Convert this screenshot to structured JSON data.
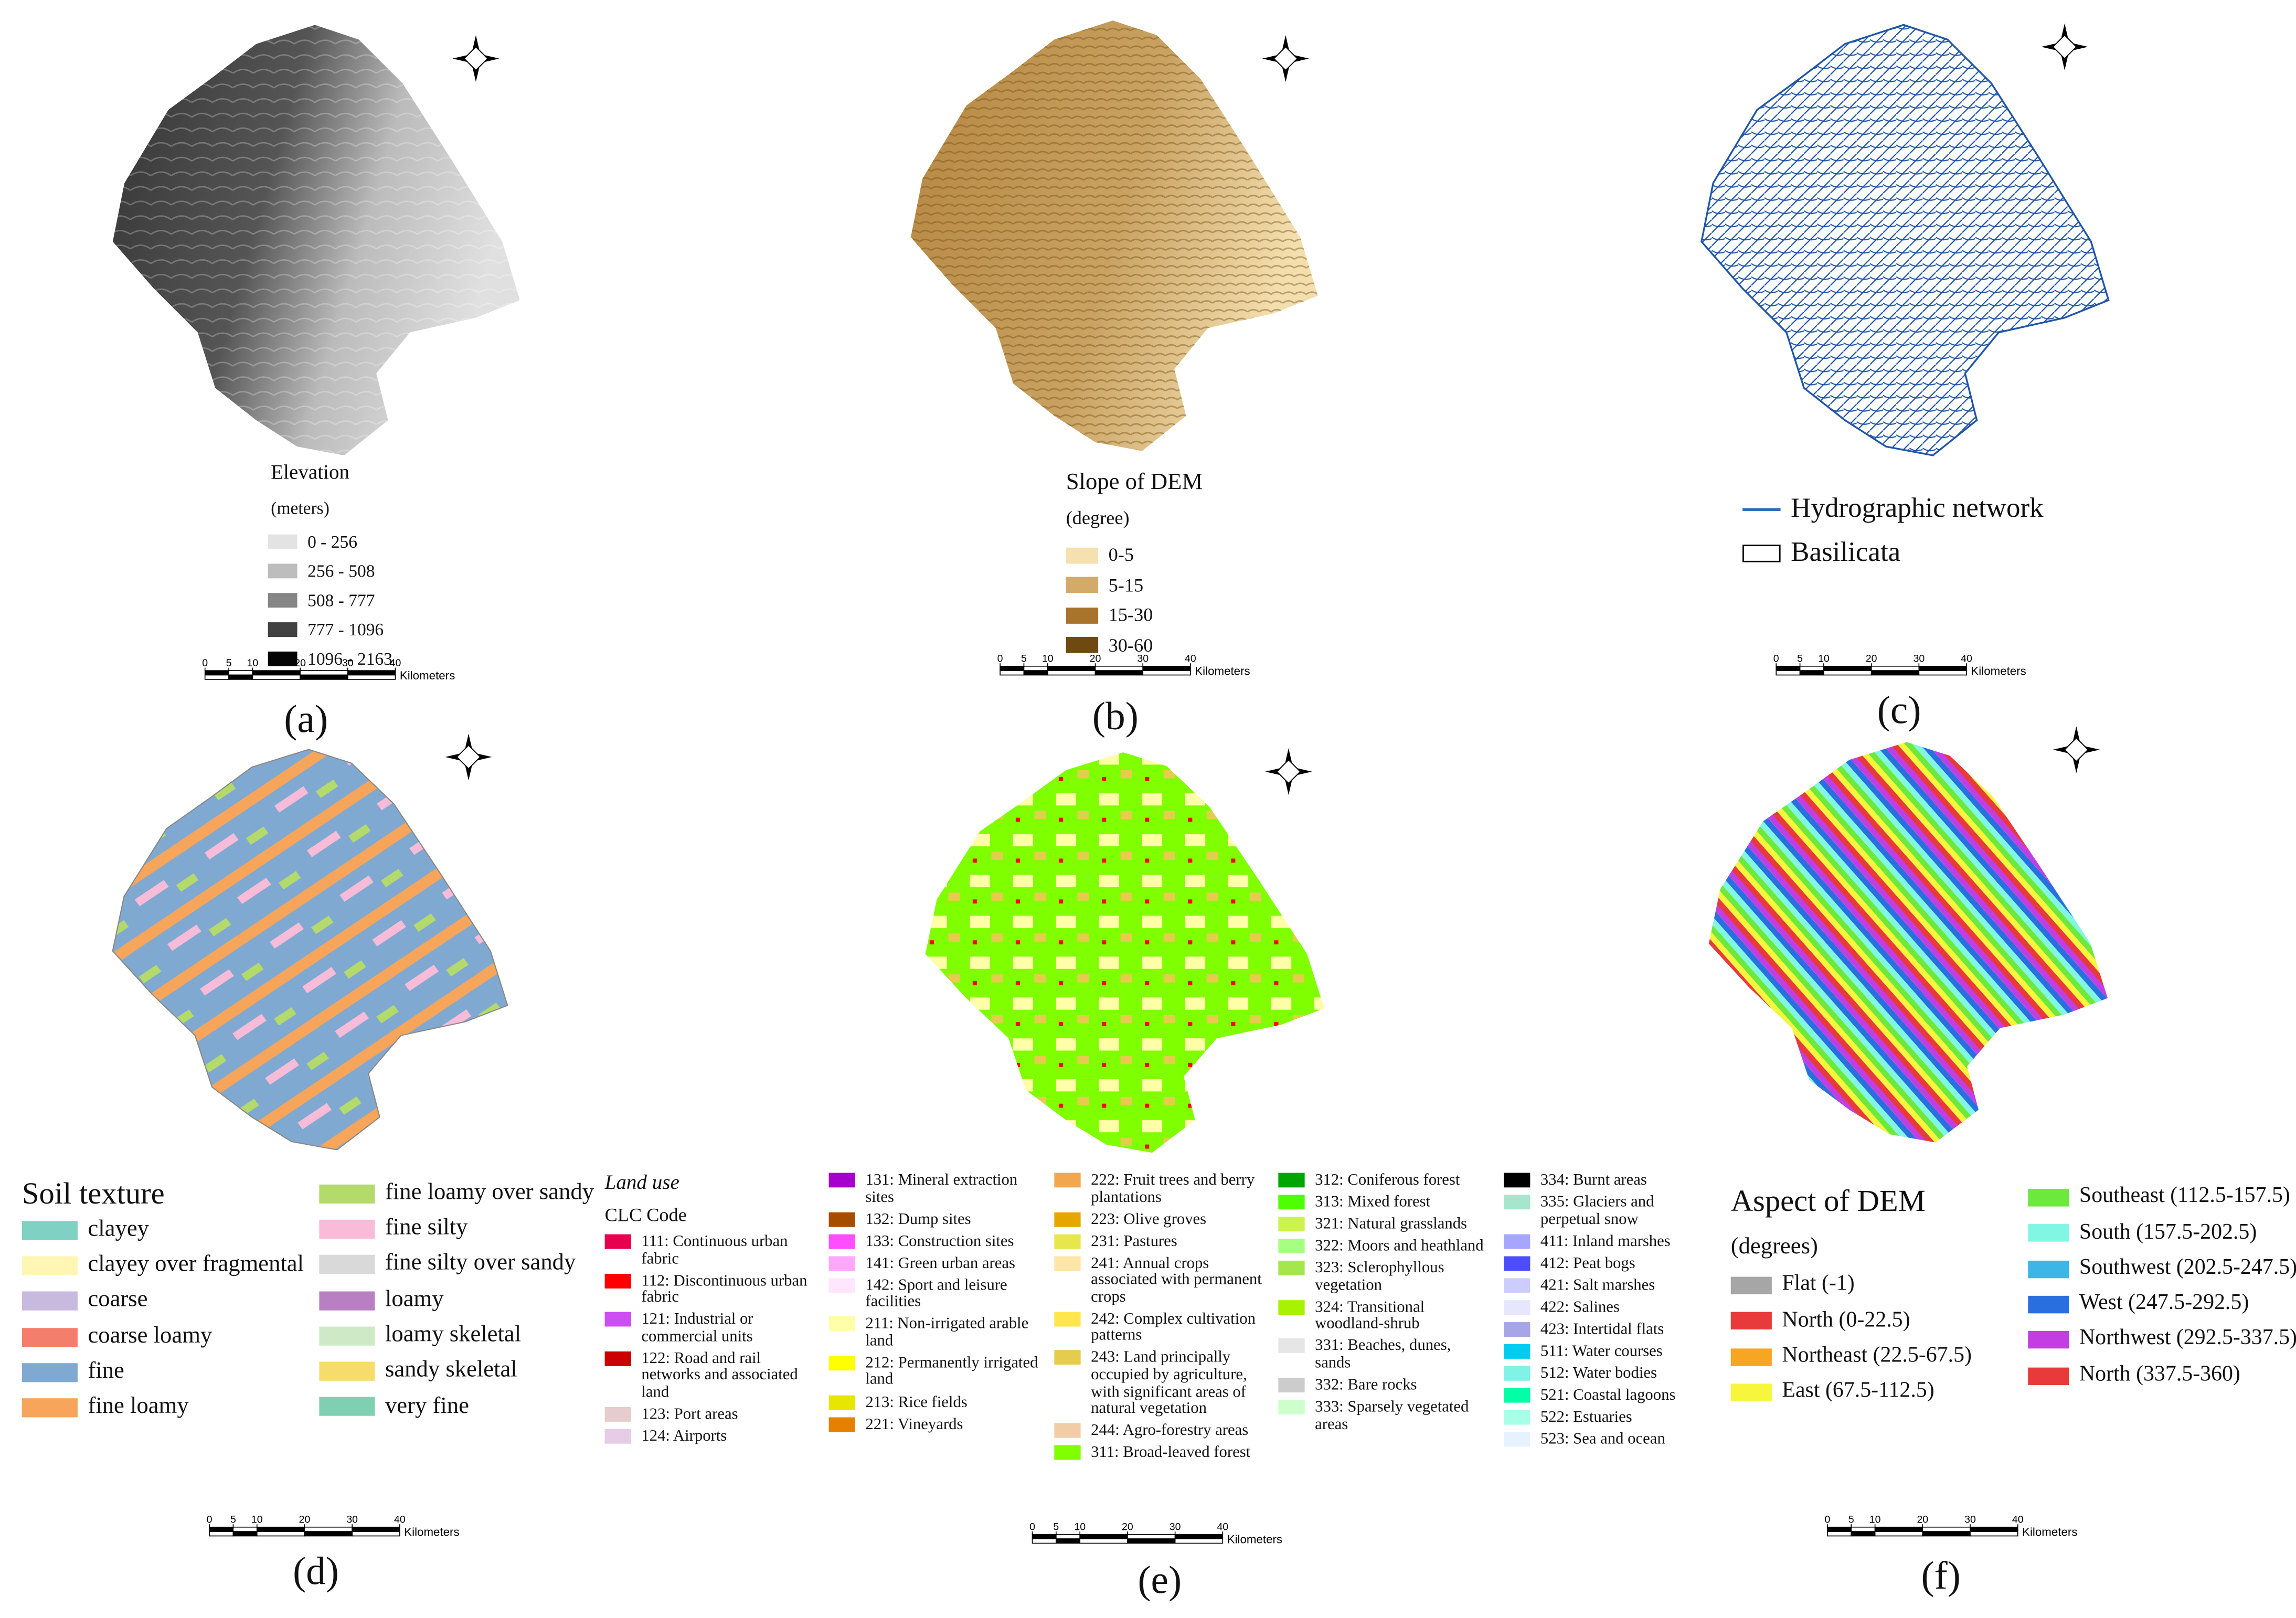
{
  "panels": [
    {
      "label": "(a)",
      "legend": {
        "title": "Elevation",
        "subtitle": "(meters)",
        "columns": [
          [
            {
              "label": "0 - 256",
              "color": "#e3e3e3"
            },
            {
              "label": "256 - 508",
              "color": "#bdbdbd"
            },
            {
              "label": "508 - 777",
              "color": "#858585"
            },
            {
              "label": "777 - 1096",
              "color": "#424242"
            },
            {
              "label": "1096 - 2163",
              "color": "#050505"
            }
          ]
        ]
      }
    },
    {
      "label": "(b)",
      "legend": {
        "title": "Slope of DEM",
        "subtitle": "(degree)",
        "columns": [
          [
            {
              "label": "0-5",
              "color": "#f5e0b0"
            },
            {
              "label": "5-15",
              "color": "#d4aa6a"
            },
            {
              "label": "15-30",
              "color": "#a8732a"
            },
            {
              "label": "30-60",
              "color": "#6e4a10"
            }
          ]
        ]
      }
    },
    {
      "label": "(c)",
      "legend": {
        "columns": [
          [
            {
              "label": "Hydrographic network",
              "color": "#2e6fb8",
              "symbol": "line"
            },
            {
              "label": "Basilicata",
              "color": "#000000",
              "symbol": "outline"
            }
          ]
        ]
      }
    },
    {
      "label": "(d)",
      "legend": {
        "title": "Soil texture",
        "columns": [
          [
            {
              "label": "clayey",
              "color": "#7fd1c3"
            },
            {
              "label": "clayey over fragmental",
              "color": "#fff6b3"
            },
            {
              "label": "coarse",
              "color": "#c8badf"
            },
            {
              "label": "coarse loamy",
              "color": "#f47d6c"
            },
            {
              "label": "fine",
              "color": "#80a9d2"
            },
            {
              "label": "fine loamy",
              "color": "#f6a55a"
            }
          ],
          [
            {
              "label": "fine loamy over sandy",
              "color": "#b3da6b"
            },
            {
              "label": "fine silty",
              "color": "#f8bbd8"
            },
            {
              "label": "fine silty over sandy",
              "color": "#d9d9d9"
            },
            {
              "label": "loamy",
              "color": "#b880c2"
            },
            {
              "label": "loamy skeletal",
              "color": "#cde9c5"
            },
            {
              "label": "sandy skeletal",
              "color": "#f6dc6a"
            },
            {
              "label": "very fine",
              "color": "#7fd0b2"
            }
          ]
        ]
      }
    },
    {
      "label": "(e)",
      "legend": {
        "title": "Land use",
        "subtitle": "CLC Code",
        "columns": [
          [
            {
              "label": "111: Continuous urban fabric",
              "color": "#e6004d"
            },
            {
              "label": "112: Discontinuous urban fabric",
              "color": "#ff0000"
            },
            {
              "label": "121: Industrial or commercial units",
              "color": "#cc4df2"
            },
            {
              "label": "122: Road and rail networks and associated land",
              "color": "#cc0000"
            },
            {
              "label": "123: Port areas",
              "color": "#e6cccc"
            },
            {
              "label": "124: Airports",
              "color": "#e6cce6"
            }
          ],
          [
            {
              "label": "131: Mineral extraction sites",
              "color": "#a600cc"
            },
            {
              "label": "132: Dump sites",
              "color": "#a64d00"
            },
            {
              "label": "133: Construction sites",
              "color": "#ff4dff"
            },
            {
              "label": "141: Green urban areas",
              "color": "#ffa6ff"
            },
            {
              "label": "142: Sport and leisure facilities",
              "color": "#ffe6ff"
            },
            {
              "label": "211: Non-irrigated arable land",
              "color": "#ffffa8"
            },
            {
              "label": "212: Permanently irrigated land",
              "color": "#ffff00"
            },
            {
              "label": "213: Rice fields",
              "color": "#e6e600"
            },
            {
              "label": "221: Vineyards",
              "color": "#e68000"
            }
          ],
          [
            {
              "label": "222: Fruit trees and berry plantations",
              "color": "#f2a64d"
            },
            {
              "label": "223: Olive groves",
              "color": "#e6a600"
            },
            {
              "label": "231: Pastures",
              "color": "#e6e64d"
            },
            {
              "label": "241: Annual crops associated with permanent crops",
              "color": "#ffe6a6"
            },
            {
              "label": "242: Complex cultivation patterns",
              "color": "#ffe64d"
            },
            {
              "label": "243: Land principally occupied by agriculture, with significant areas of natural vegetation",
              "color": "#e6cc4d"
            },
            {
              "label": "244: Agro-forestry areas",
              "color": "#f2cca6"
            },
            {
              "label": "311: Broad-leaved forest",
              "color": "#80ff00"
            }
          ],
          [
            {
              "label": "312: Coniferous forest",
              "color": "#00a600"
            },
            {
              "label": "313: Mixed forest",
              "color": "#4dff00"
            },
            {
              "label": "321: Natural grasslands",
              "color": "#ccf24d"
            },
            {
              "label": "322: Moors and heathland",
              "color": "#a6ff80"
            },
            {
              "label": "323: Sclerophyllous vegetation",
              "color": "#a6e64d"
            },
            {
              "label": "324: Transitional woodland-shrub",
              "color": "#a6f200"
            },
            {
              "label": "331: Beaches, dunes, sands",
              "color": "#e6e6e6"
            },
            {
              "label": "332: Bare rocks",
              "color": "#cccccc"
            },
            {
              "label": "333: Sparsely vegetated areas",
              "color": "#ccffcc"
            }
          ],
          [
            {
              "label": "334: Burnt areas",
              "color": "#000000"
            },
            {
              "label": "335: Glaciers and perpetual snow",
              "color": "#a6e6cc"
            },
            {
              "label": "411: Inland marshes",
              "color": "#a6a6ff"
            },
            {
              "label": "412: Peat bogs",
              "color": "#4d4dff"
            },
            {
              "label": "421: Salt marshes",
              "color": "#ccccff"
            },
            {
              "label": "422: Salines",
              "color": "#e6e6ff"
            },
            {
              "label": "423: Intertidal flats",
              "color": "#a6a6e6"
            },
            {
              "label": "511: Water courses",
              "color": "#00ccf2"
            },
            {
              "label": "512: Water bodies",
              "color": "#80f2e6"
            },
            {
              "label": "521: Coastal lagoons",
              "color": "#00ffa6"
            },
            {
              "label": "522: Estuaries",
              "color": "#a6ffe6"
            },
            {
              "label": "523: Sea and ocean",
              "color": "#e6f2ff"
            }
          ]
        ]
      }
    },
    {
      "label": "(f)",
      "legend": {
        "title": "Aspect of DEM",
        "subtitle": "(degrees)",
        "columns": [
          [
            {
              "label": "Flat (-1)",
              "color": "#a6a6a6"
            },
            {
              "label": "North (0-22.5)",
              "color": "#e83a3a"
            },
            {
              "label": "Northeast (22.5-67.5)",
              "color": "#f6a623"
            },
            {
              "label": "East (67.5-112.5)",
              "color": "#f6f63c"
            }
          ],
          [
            {
              "label": "Southeast (112.5-157.5)",
              "color": "#6de83c"
            },
            {
              "label": "South (157.5-202.5)",
              "color": "#80f6e3"
            },
            {
              "label": "Southwest (202.5-247.5)",
              "color": "#3cb6e8"
            },
            {
              "label": "West (247.5-292.5)",
              "color": "#2a6fe0"
            },
            {
              "label": "Northwest (292.5-337.5)",
              "color": "#c23ee3"
            },
            {
              "label": "North (337.5-360)",
              "color": "#e83a3a"
            }
          ]
        ]
      }
    }
  ],
  "scale_bar": {
    "ticks": [
      0,
      5,
      10,
      20,
      30,
      40
    ],
    "unit": "Kilometers"
  }
}
